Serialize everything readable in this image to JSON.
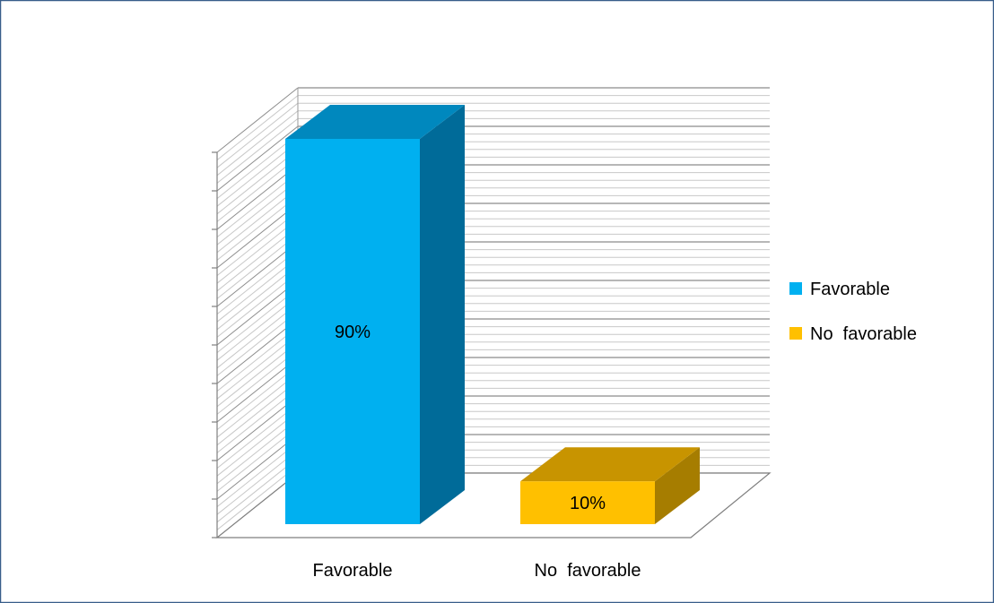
{
  "chart_data": {
    "type": "bar",
    "style": "3d-column",
    "categories": [
      "Favorable",
      "No  favorable"
    ],
    "values": [
      90,
      10
    ],
    "data_labels": [
      "90%",
      "10%"
    ],
    "unit": "%",
    "ylim": [
      0,
      100
    ],
    "grid": true,
    "legend": {
      "placement": "right",
      "entries": [
        "Favorable",
        "No  favorable"
      ]
    },
    "colors": {
      "bars": [
        "#00B0F0",
        "#FFC000"
      ],
      "bar_tops": [
        "#0088BE",
        "#C89400"
      ],
      "bar_sides": [
        "#006B99",
        "#A67D00"
      ],
      "gridlines": "#a6a6a6",
      "frame": "#385d8a"
    }
  }
}
